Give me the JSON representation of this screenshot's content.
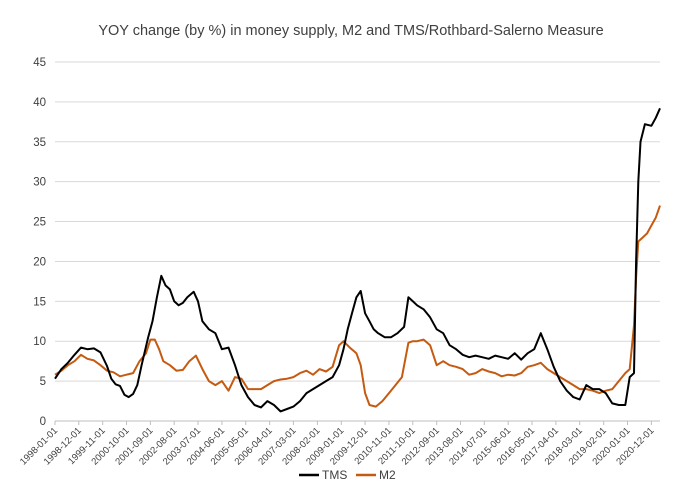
{
  "chart_data": {
    "type": "line",
    "title": "YOY change (by %) in money supply, M2 and TMS/Rothbard-Salerno Measure",
    "xlabel": "",
    "ylabel": "",
    "ylim": [
      0,
      45
    ],
    "yticks": [
      0,
      5,
      10,
      15,
      20,
      25,
      30,
      35,
      40,
      45
    ],
    "grid": "horizontal",
    "legend": "bottom",
    "x_start": "1998-01-01",
    "x_end": "2021-04-01",
    "xticks": [
      "1998-01-01",
      "1998-12-01",
      "1999-11-01",
      "2000-10-01",
      "2001-09-01",
      "2002-08-01",
      "2003-07-01",
      "2004-06-01",
      "2005-05-01",
      "2006-04-01",
      "2007-03-01",
      "2008-02-01",
      "2009-01-01",
      "2009-12-01",
      "2010-11-01",
      "2011-10-01",
      "2012-09-01",
      "2013-08-01",
      "2014-07-01",
      "2015-06-01",
      "2016-05-01",
      "2017-04-01",
      "2018-03-01",
      "2019-02-01",
      "2020-01-01",
      "2020-12-01"
    ],
    "series": [
      {
        "name": "TMS",
        "color": "#000000",
        "points": [
          [
            "1998-01-01",
            5.3
          ],
          [
            "1998-04-01",
            6.5
          ],
          [
            "1998-07-01",
            7.3
          ],
          [
            "1998-10-01",
            8.3
          ],
          [
            "1999-01-01",
            9.2
          ],
          [
            "1999-04-01",
            9.0
          ],
          [
            "1999-07-01",
            9.1
          ],
          [
            "1999-10-01",
            8.6
          ],
          [
            "2000-01-01",
            6.9
          ],
          [
            "2000-03-01",
            5.3
          ],
          [
            "2000-05-01",
            4.6
          ],
          [
            "2000-07-01",
            4.4
          ],
          [
            "2000-09-01",
            3.3
          ],
          [
            "2000-11-01",
            3.0
          ],
          [
            "2001-01-01",
            3.4
          ],
          [
            "2001-03-01",
            4.5
          ],
          [
            "2001-05-01",
            7.0
          ],
          [
            "2001-08-01",
            10.5
          ],
          [
            "2001-10-01",
            12.5
          ],
          [
            "2001-12-01",
            15.5
          ],
          [
            "2002-02-01",
            18.2
          ],
          [
            "2002-04-01",
            17.0
          ],
          [
            "2002-06-01",
            16.5
          ],
          [
            "2002-08-01",
            15.0
          ],
          [
            "2002-10-01",
            14.5
          ],
          [
            "2002-12-01",
            14.8
          ],
          [
            "2003-02-01",
            15.5
          ],
          [
            "2003-05-01",
            16.2
          ],
          [
            "2003-07-01",
            15.0
          ],
          [
            "2003-09-01",
            12.5
          ],
          [
            "2003-12-01",
            11.5
          ],
          [
            "2004-03-01",
            11.0
          ],
          [
            "2004-06-01",
            9.0
          ],
          [
            "2004-09-01",
            9.2
          ],
          [
            "2004-12-01",
            7.0
          ],
          [
            "2005-03-01",
            4.5
          ],
          [
            "2005-06-01",
            3.0
          ],
          [
            "2005-09-01",
            2.0
          ],
          [
            "2005-12-01",
            1.7
          ],
          [
            "2006-03-01",
            2.5
          ],
          [
            "2006-06-01",
            2.0
          ],
          [
            "2006-09-01",
            1.2
          ],
          [
            "2006-12-01",
            1.5
          ],
          [
            "2007-03-01",
            1.8
          ],
          [
            "2007-06-01",
            2.5
          ],
          [
            "2007-09-01",
            3.5
          ],
          [
            "2007-12-01",
            4.0
          ],
          [
            "2008-03-01",
            4.5
          ],
          [
            "2008-06-01",
            5.0
          ],
          [
            "2008-09-01",
            5.5
          ],
          [
            "2008-12-01",
            7.0
          ],
          [
            "2009-02-01",
            9.0
          ],
          [
            "2009-04-01",
            11.5
          ],
          [
            "2009-06-01",
            13.5
          ],
          [
            "2009-08-01",
            15.5
          ],
          [
            "2009-10-01",
            16.3
          ],
          [
            "2009-12-01",
            13.5
          ],
          [
            "2010-02-01",
            12.5
          ],
          [
            "2010-04-01",
            11.5
          ],
          [
            "2010-06-01",
            11.0
          ],
          [
            "2010-09-01",
            10.5
          ],
          [
            "2010-12-01",
            10.5
          ],
          [
            "2011-03-01",
            11.0
          ],
          [
            "2011-06-01",
            11.8
          ],
          [
            "2011-08-01",
            15.5
          ],
          [
            "2011-10-01",
            15.0
          ],
          [
            "2011-12-01",
            14.5
          ],
          [
            "2012-03-01",
            14.0
          ],
          [
            "2012-06-01",
            13.0
          ],
          [
            "2012-09-01",
            11.5
          ],
          [
            "2012-12-01",
            11.0
          ],
          [
            "2013-03-01",
            9.5
          ],
          [
            "2013-06-01",
            9.0
          ],
          [
            "2013-09-01",
            8.3
          ],
          [
            "2013-12-01",
            8.0
          ],
          [
            "2014-03-01",
            8.2
          ],
          [
            "2014-06-01",
            8.0
          ],
          [
            "2014-09-01",
            7.8
          ],
          [
            "2014-12-01",
            8.2
          ],
          [
            "2015-03-01",
            8.0
          ],
          [
            "2015-06-01",
            7.8
          ],
          [
            "2015-09-01",
            8.5
          ],
          [
            "2015-12-01",
            7.7
          ],
          [
            "2016-03-01",
            8.5
          ],
          [
            "2016-06-01",
            9.0
          ],
          [
            "2016-09-01",
            11.0
          ],
          [
            "2016-12-01",
            9.0
          ],
          [
            "2017-03-01",
            6.8
          ],
          [
            "2017-06-01",
            5.0
          ],
          [
            "2017-09-01",
            3.8
          ],
          [
            "2017-12-01",
            3.0
          ],
          [
            "2018-03-01",
            2.7
          ],
          [
            "2018-06-01",
            4.5
          ],
          [
            "2018-09-01",
            4.0
          ],
          [
            "2018-12-01",
            4.0
          ],
          [
            "2019-03-01",
            3.5
          ],
          [
            "2019-06-01",
            2.2
          ],
          [
            "2019-09-01",
            2.0
          ],
          [
            "2019-12-01",
            2.0
          ],
          [
            "2020-02-01",
            5.5
          ],
          [
            "2020-04-01",
            6.0
          ],
          [
            "2020-05-01",
            20.0
          ],
          [
            "2020-06-01",
            30.0
          ],
          [
            "2020-07-01",
            35.0
          ],
          [
            "2020-09-01",
            37.2
          ],
          [
            "2020-12-01",
            37.0
          ],
          [
            "2021-02-01",
            38.0
          ],
          [
            "2021-04-01",
            39.2
          ]
        ]
      },
      {
        "name": "M2",
        "color": "#c55a11",
        "points": [
          [
            "1998-01-01",
            5.8
          ],
          [
            "1998-04-01",
            6.3
          ],
          [
            "1998-07-01",
            7.0
          ],
          [
            "1998-10-01",
            7.5
          ],
          [
            "1999-01-01",
            8.3
          ],
          [
            "1999-04-01",
            7.8
          ],
          [
            "1999-07-01",
            7.6
          ],
          [
            "1999-10-01",
            7.0
          ],
          [
            "2000-01-01",
            6.3
          ],
          [
            "2000-04-01",
            6.1
          ],
          [
            "2000-07-01",
            5.6
          ],
          [
            "2000-10-01",
            5.8
          ],
          [
            "2001-01-01",
            6.0
          ],
          [
            "2001-04-01",
            7.5
          ],
          [
            "2001-07-01",
            8.5
          ],
          [
            "2001-09-01",
            10.2
          ],
          [
            "2001-11-01",
            10.2
          ],
          [
            "2002-01-01",
            9.0
          ],
          [
            "2002-03-01",
            7.5
          ],
          [
            "2002-06-01",
            7.0
          ],
          [
            "2002-09-01",
            6.3
          ],
          [
            "2002-12-01",
            6.4
          ],
          [
            "2003-03-01",
            7.5
          ],
          [
            "2003-06-01",
            8.2
          ],
          [
            "2003-09-01",
            6.5
          ],
          [
            "2003-12-01",
            5.0
          ],
          [
            "2004-03-01",
            4.5
          ],
          [
            "2004-06-01",
            5.0
          ],
          [
            "2004-09-01",
            3.8
          ],
          [
            "2004-12-01",
            5.5
          ],
          [
            "2005-03-01",
            5.3
          ],
          [
            "2005-06-01",
            4.0
          ],
          [
            "2005-09-01",
            4.0
          ],
          [
            "2005-12-01",
            4.0
          ],
          [
            "2006-03-01",
            4.5
          ],
          [
            "2006-06-01",
            5.0
          ],
          [
            "2006-09-01",
            5.2
          ],
          [
            "2006-12-01",
            5.3
          ],
          [
            "2007-03-01",
            5.5
          ],
          [
            "2007-06-01",
            6.0
          ],
          [
            "2007-09-01",
            6.3
          ],
          [
            "2007-12-01",
            5.8
          ],
          [
            "2008-03-01",
            6.5
          ],
          [
            "2008-06-01",
            6.2
          ],
          [
            "2008-09-01",
            6.8
          ],
          [
            "2008-12-01",
            9.5
          ],
          [
            "2009-02-01",
            10.0
          ],
          [
            "2009-05-01",
            9.2
          ],
          [
            "2009-08-01",
            8.5
          ],
          [
            "2009-10-01",
            7.0
          ],
          [
            "2009-12-01",
            3.5
          ],
          [
            "2010-02-01",
            2.0
          ],
          [
            "2010-05-01",
            1.8
          ],
          [
            "2010-08-01",
            2.5
          ],
          [
            "2010-11-01",
            3.5
          ],
          [
            "2011-02-01",
            4.5
          ],
          [
            "2011-05-01",
            5.5
          ],
          [
            "2011-08-01",
            9.8
          ],
          [
            "2011-10-01",
            10.0
          ],
          [
            "2011-12-01",
            10.0
          ],
          [
            "2012-03-01",
            10.2
          ],
          [
            "2012-06-01",
            9.5
          ],
          [
            "2012-09-01",
            7.0
          ],
          [
            "2012-12-01",
            7.5
          ],
          [
            "2013-03-01",
            7.0
          ],
          [
            "2013-06-01",
            6.8
          ],
          [
            "2013-09-01",
            6.5
          ],
          [
            "2013-12-01",
            5.8
          ],
          [
            "2014-03-01",
            6.0
          ],
          [
            "2014-06-01",
            6.5
          ],
          [
            "2014-09-01",
            6.2
          ],
          [
            "2014-12-01",
            6.0
          ],
          [
            "2015-03-01",
            5.6
          ],
          [
            "2015-06-01",
            5.8
          ],
          [
            "2015-09-01",
            5.7
          ],
          [
            "2015-12-01",
            6.0
          ],
          [
            "2016-03-01",
            6.8
          ],
          [
            "2016-06-01",
            7.0
          ],
          [
            "2016-09-01",
            7.3
          ],
          [
            "2016-12-01",
            6.5
          ],
          [
            "2017-03-01",
            6.0
          ],
          [
            "2017-06-01",
            5.5
          ],
          [
            "2017-09-01",
            5.0
          ],
          [
            "2017-12-01",
            4.5
          ],
          [
            "2018-03-01",
            4.0
          ],
          [
            "2018-06-01",
            4.0
          ],
          [
            "2018-09-01",
            3.8
          ],
          [
            "2018-12-01",
            3.5
          ],
          [
            "2019-03-01",
            3.8
          ],
          [
            "2019-06-01",
            4.0
          ],
          [
            "2019-09-01",
            5.0
          ],
          [
            "2019-12-01",
            6.0
          ],
          [
            "2020-02-01",
            6.5
          ],
          [
            "2020-04-01",
            12.0
          ],
          [
            "2020-05-01",
            18.0
          ],
          [
            "2020-06-01",
            22.5
          ],
          [
            "2020-08-01",
            23.0
          ],
          [
            "2020-10-01",
            23.5
          ],
          [
            "2020-12-01",
            24.5
          ],
          [
            "2021-02-01",
            25.5
          ],
          [
            "2021-04-01",
            27.0
          ]
        ]
      }
    ]
  }
}
